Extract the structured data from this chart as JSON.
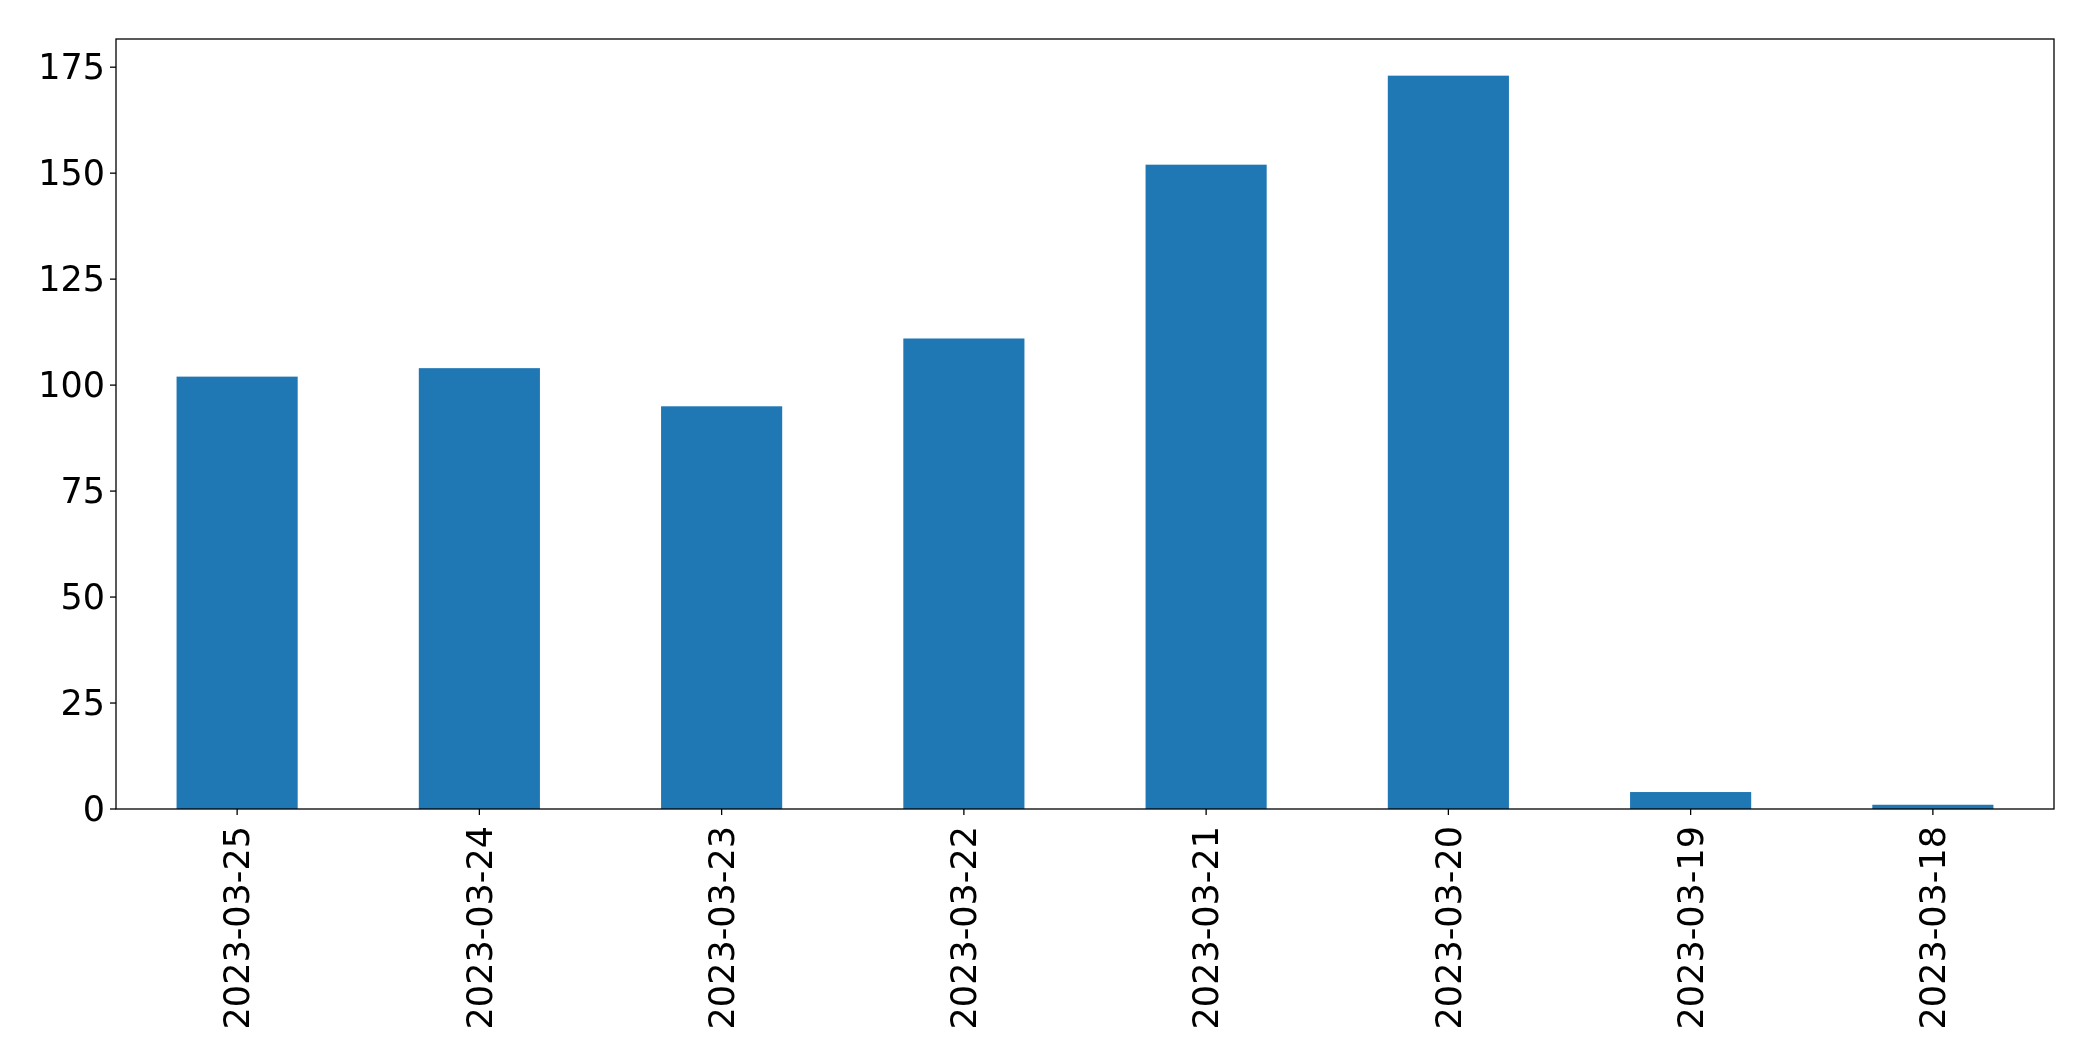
{
  "chart_data": {
    "type": "bar",
    "categories": [
      "2023-03-25",
      "2023-03-24",
      "2023-03-23",
      "2023-03-22",
      "2023-03-21",
      "2023-03-20",
      "2023-03-19",
      "2023-03-18"
    ],
    "values": [
      102,
      104,
      95,
      111,
      152,
      173,
      4,
      1
    ],
    "color": "#1f77b4",
    "ylim": [
      0,
      181.65
    ],
    "yticks": [
      0,
      25,
      50,
      75,
      100,
      125,
      150,
      175
    ]
  }
}
